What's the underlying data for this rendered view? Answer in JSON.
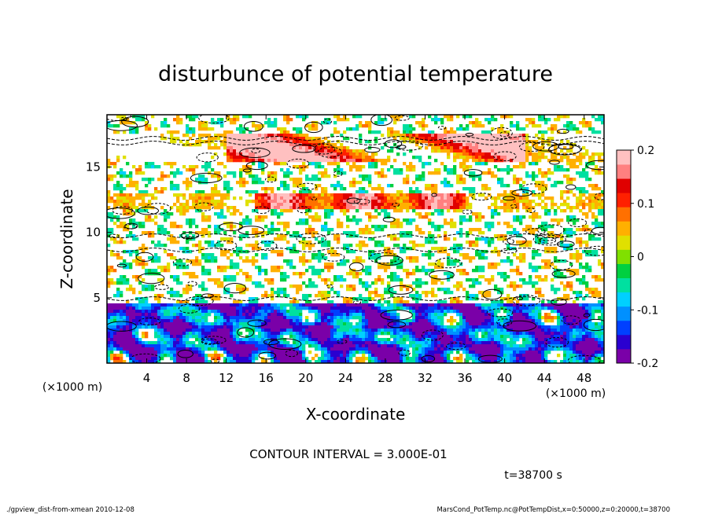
{
  "chart_data": {
    "type": "heatmap",
    "title": "disturbunce of potential temperature",
    "xlabel": "X-coordinate",
    "ylabel": "Z-coordinate",
    "x_units": "(×1000 m)",
    "y_units": "(×1000 m)",
    "x_ticks": [
      4,
      8,
      12,
      16,
      20,
      24,
      28,
      32,
      36,
      40,
      44,
      48
    ],
    "y_ticks": [
      5,
      10,
      15
    ],
    "xlim": [
      0,
      50
    ],
    "ylim": [
      0,
      19
    ],
    "colorbar": {
      "ticks": [
        "0.2",
        "0.1",
        "0",
        "-0.1",
        "-0.2"
      ],
      "tick_values": [
        0.2,
        0.1,
        0,
        -0.1,
        -0.2
      ],
      "range": [
        -0.2,
        0.2
      ],
      "colors": [
        "#7a00a8",
        "#2a00d0",
        "#0040ff",
        "#0090ff",
        "#00d0ff",
        "#00e0a0",
        "#00d040",
        "#80e000",
        "#e0e000",
        "#ffb000",
        "#ff7000",
        "#ff2000",
        "#e00000",
        "#ff8080",
        "#ffc0c0"
      ]
    },
    "bands": [
      {
        "z_range": [
          0,
          4.5
        ],
        "dominant": "negative"
      },
      {
        "z_range": [
          12,
          13
        ],
        "dominant": "positive"
      },
      {
        "z_range": [
          15.5,
          17.5
        ],
        "dominant": "positive"
      }
    ],
    "grid": false,
    "legend": "colorbar-right"
  },
  "annotations": {
    "contour_interval": "CONTOUR INTERVAL = 3.000E-01",
    "time": "t=38700 s",
    "footer_left": "./gpview_dist-from-xmean   2010-12-08",
    "footer_right": "MarsCond_PotTemp.nc@PotTempDist,x=0:50000,z=0:20000,t=38700"
  }
}
